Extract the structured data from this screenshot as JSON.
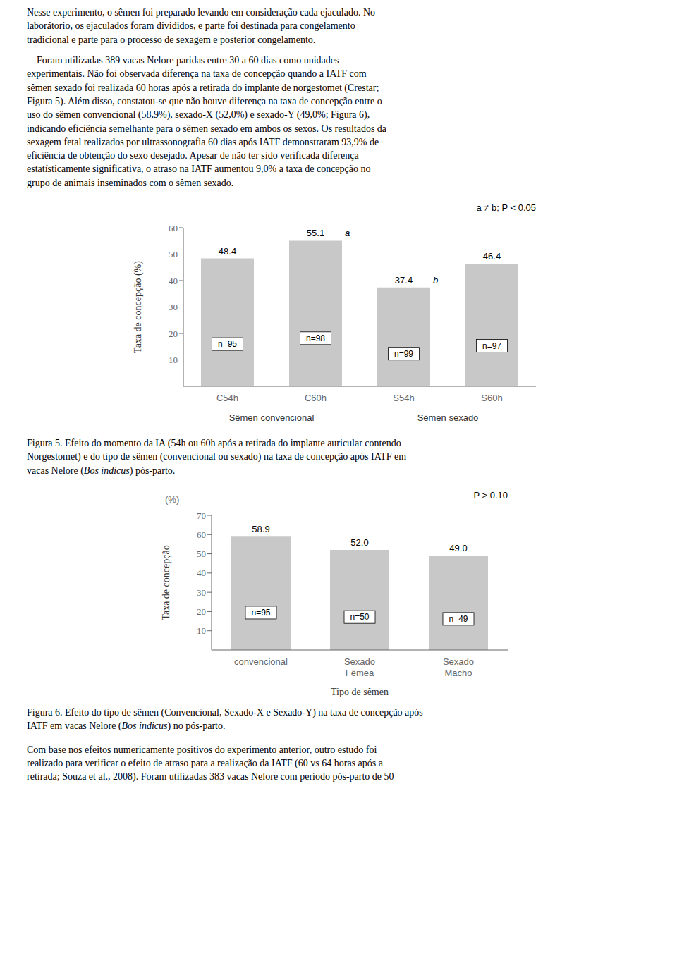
{
  "text_before": [
    "Nesse experimento, o sêmen foi preparado levando em consideração cada ejaculado. No\nlaborátorio, os ejaculados foram divididos, e parte foi destinada para congelamento\ntradicional e parte para o processo de sexagem e posterior congelamento.",
    "    Foram utilizadas 389 vacas Nelore paridas entre 30 a 60 dias como unidades\nexperimentais. Não foi observada diferença na taxa de concepção quando a IATF com\nsêmen sexado foi realizada 60 horas após a retirada do implante de norgestomet (Crestar;\nFigura 5). Além disso, constatou-se que não houve diferença na taxa de concepção entre o\nuso do sêmen convencional (58,9%), sexado-X (52,0%) e sexado-Y (49,0%; Figura 6),\nindicando eficiência semelhante para o sêmen sexado em ambos os sexos. Os resultados da\nsexagem fetal realizados por ultrassonografia 60 dias após IATF demonstraram 93,9% de\neficiência de obtenção do sexo desejado. Apesar de não ter sido verificada diferença\nestatísticamente significativa, o atraso na IATF aumentou 9,0% a taxa de concepção no\ngrupo de animais inseminados com o sêmen sexado."
  ],
  "chart_data": [
    {
      "type": "bar",
      "categories": [
        "C54h",
        "C60h",
        "S54h",
        "S60h"
      ],
      "values": [
        48.4,
        55.1,
        37.4,
        46.4
      ],
      "data_labels": true,
      "color": "#c8c8c8",
      "ylabel": "Taxa de concepção (%)",
      "ylim": [
        0,
        60
      ],
      "yticks": [
        10,
        20,
        30,
        40,
        50,
        60
      ],
      "n_labels": [
        "n=95",
        "n=98",
        "n=99",
        "n=97"
      ],
      "annotations": [
        {
          "category": "C60h",
          "text": "a"
        },
        {
          "category": "S54h",
          "text": "b"
        },
        {
          "text": "a ≠ b;  P < 0.05"
        }
      ],
      "group_labels": [
        {
          "text": "Sêmen convencional",
          "categories": [
            "C54h",
            "C60h"
          ]
        },
        {
          "text": "Sêmen sexado",
          "categories": [
            "S54h",
            "S60h"
          ]
        }
      ],
      "caption": [
        "Figura 5. Efeito do momento da IA (54h ou 60h após a retirada do implante auricular contendo\nNorgestomet) e do tipo de sêmen (convencional ou sexado) na taxa de concepção após IATF em\nvacas Nelore (",
        "Bos indicus",
        ") pós-parto."
      ]
    },
    {
      "type": "bar",
      "categories": [
        "convencional",
        "Sexado\nFêmea",
        "Sexado\nMacho"
      ],
      "values": [
        58.9,
        52.0,
        49.0
      ],
      "value_labels": [
        "58.9",
        "52.0",
        "49.0"
      ],
      "data_labels": true,
      "color": "#c8c8c8",
      "ylabel": "Taxa de concepção",
      "ylabel_unit": "(%)",
      "xlabel": "Tipo de sêmen",
      "ylim": [
        0,
        70
      ],
      "yticks": [
        10,
        20,
        30,
        40,
        50,
        60,
        70
      ],
      "n_labels": [
        "n=95",
        "n=50",
        "n=49"
      ],
      "annotations": [
        {
          "text": "P > 0.10"
        }
      ],
      "caption": [
        "Figura 6. Efeito do tipo de sêmen (Convencional, Sexado-X e Sexado-Y) na taxa de concepção após\nIATF em vacas Nelore (",
        "Bos indicus",
        ") no pós-parto."
      ]
    }
  ],
  "text_after": "Com base nos efeitos numericamente positivos do experimento anterior, outro estudo foi\nrealizado para verificar o efeito de atraso para a realização da IATF (60 vs 64 horas após a\nretirada; Souza et al., 2008). Foram utilizadas 383 vacas Nelore com período pós-parto de 50"
}
